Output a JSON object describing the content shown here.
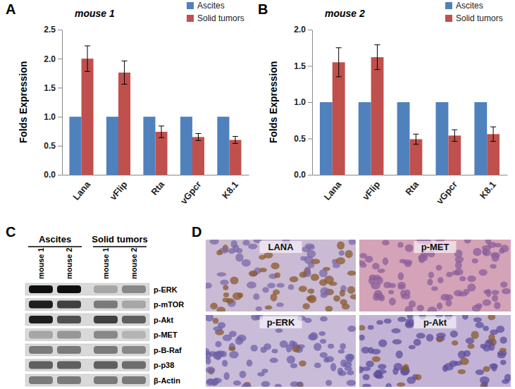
{
  "chart_data": [
    {
      "type": "bar",
      "panel": "A",
      "title": "mouse 1",
      "categories": [
        "Lana",
        "vFlip",
        "Rta",
        "vGpcr",
        "K8.1"
      ],
      "series": [
        {
          "name": "Ascites",
          "color": "#4F81BD",
          "values": [
            1,
            1,
            1,
            1,
            1
          ]
        },
        {
          "name": "Solid tumors",
          "color": "#C0504D",
          "values": [
            2.0,
            1.76,
            0.74,
            0.65,
            0.6
          ],
          "errors": [
            0.22,
            0.2,
            0.1,
            0.06,
            0.06
          ]
        }
      ],
      "y_label": "Folds Expression",
      "ylim": [
        0,
        2.5
      ],
      "yticks": [
        {
          "value": 0,
          "label": "0.0"
        },
        0.5,
        {
          "value": 1,
          "label": "1.0"
        },
        1.5,
        {
          "value": 2,
          "label": "2.0"
        },
        2.5
      ],
      "legend": "top-right",
      "grid": false
    },
    {
      "type": "bar",
      "panel": "B",
      "title": "mouse 2",
      "categories": [
        "Lana",
        "vFlip",
        "Rta",
        "vGpcr",
        "K8.1"
      ],
      "series": [
        {
          "name": "Ascites",
          "color": "#4F81BD",
          "values": [
            1,
            1,
            1,
            1,
            1
          ]
        },
        {
          "name": "Solid tumors",
          "color": "#C0504D",
          "values": [
            1.55,
            1.62,
            0.49,
            0.54,
            0.56
          ],
          "errors": [
            0.2,
            0.17,
            0.07,
            0.08,
            0.1
          ]
        }
      ],
      "y_label": "Folds Expression",
      "ylim": [
        0,
        2.0
      ],
      "yticks": [
        {
          "value": 0,
          "label": "0.0"
        },
        0.5,
        {
          "value": 1,
          "label": "1.0"
        },
        1.5,
        {
          "value": 2,
          "label": "2.0"
        }
      ],
      "legend": "top-right",
      "grid": false
    }
  ],
  "blot": {
    "panel": "C",
    "groups": [
      {
        "label": "Ascites",
        "lanes": [
          "mouse 1",
          "mouse 2"
        ]
      },
      {
        "label": "Solid tumors",
        "lanes": [
          "mouse 1",
          "mouse 2"
        ]
      }
    ],
    "rows": [
      {
        "label": "p-ERK",
        "intensity": [
          0.95,
          0.95,
          0.45,
          0.55
        ]
      },
      {
        "label": "p-mTOR",
        "intensity": [
          0.9,
          0.8,
          0.6,
          0.45
        ]
      },
      {
        "label": "p-Akt",
        "intensity": [
          0.9,
          0.75,
          0.8,
          0.7
        ]
      },
      {
        "label": "p-MET",
        "intensity": [
          0.45,
          0.5,
          0.55,
          0.4
        ]
      },
      {
        "label": "p-B-Raf",
        "intensity": [
          0.6,
          0.6,
          0.6,
          0.55
        ]
      },
      {
        "label": "p-p38",
        "intensity": [
          0.7,
          0.7,
          0.7,
          0.65
        ]
      },
      {
        "label": "β-Actin",
        "intensity": [
          0.6,
          0.6,
          0.6,
          0.6
        ]
      }
    ]
  },
  "ihc": {
    "panel": "D",
    "images": [
      {
        "label": "LANA"
      },
      {
        "label": "p-MET"
      },
      {
        "label": "p-ERK"
      },
      {
        "label": "p-Akt"
      }
    ]
  }
}
